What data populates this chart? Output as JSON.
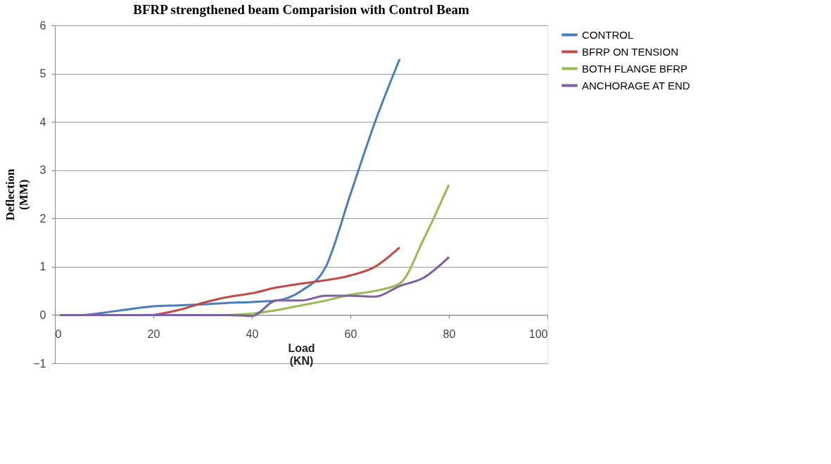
{
  "chart_data": {
    "type": "line",
    "title": "BFRP strengthened beam Comparision with Control Beam",
    "xlabel": "Load\n(KN)",
    "ylabel": "Deflection\n(MM)",
    "x": [
      1,
      5,
      10,
      15,
      20,
      25,
      30,
      35,
      40,
      45,
      50,
      55,
      60,
      65,
      70,
      75,
      80
    ],
    "series": [
      {
        "name": "CONTROL",
        "color": "#4a7ebb",
        "values": [
          0,
          0,
          0.05,
          0.12,
          0.18,
          0.2,
          0.22,
          0.25,
          0.27,
          0.3,
          0.5,
          1.0,
          2.5,
          4.0,
          5.3,
          null,
          null
        ]
      },
      {
        "name": "BFRP ON TENSION",
        "color": "#be4b48",
        "values": [
          null,
          null,
          null,
          null,
          0,
          0.1,
          0.25,
          0.37,
          0.45,
          0.57,
          0.65,
          0.72,
          0.82,
          1.0,
          1.4,
          null,
          null
        ]
      },
      {
        "name": "BOTH FLANGE BFRP",
        "color": "#98b954",
        "values": [
          null,
          null,
          null,
          null,
          null,
          null,
          null,
          0,
          0.03,
          0.1,
          0.2,
          0.3,
          0.42,
          0.5,
          0.65,
          1.6,
          2.7
        ]
      },
      {
        "name": "ANCHORAGE AT END",
        "color": "#7d60a0",
        "values": [
          0,
          0,
          0,
          0,
          0,
          0,
          0,
          0,
          -0.02,
          0.3,
          0.3,
          0.4,
          0.4,
          0.38,
          0.6,
          0.78,
          1.2
        ]
      }
    ],
    "xlim": [
      0,
      100
    ],
    "xticks": [
      0,
      20,
      40,
      60,
      80,
      100
    ],
    "ylim": [
      -1,
      6
    ],
    "yticks": [
      -1,
      0,
      1,
      2,
      3,
      4,
      5,
      6
    ],
    "grid": "y",
    "legend": "right",
    "marker": "none",
    "line_style": "solid"
  }
}
